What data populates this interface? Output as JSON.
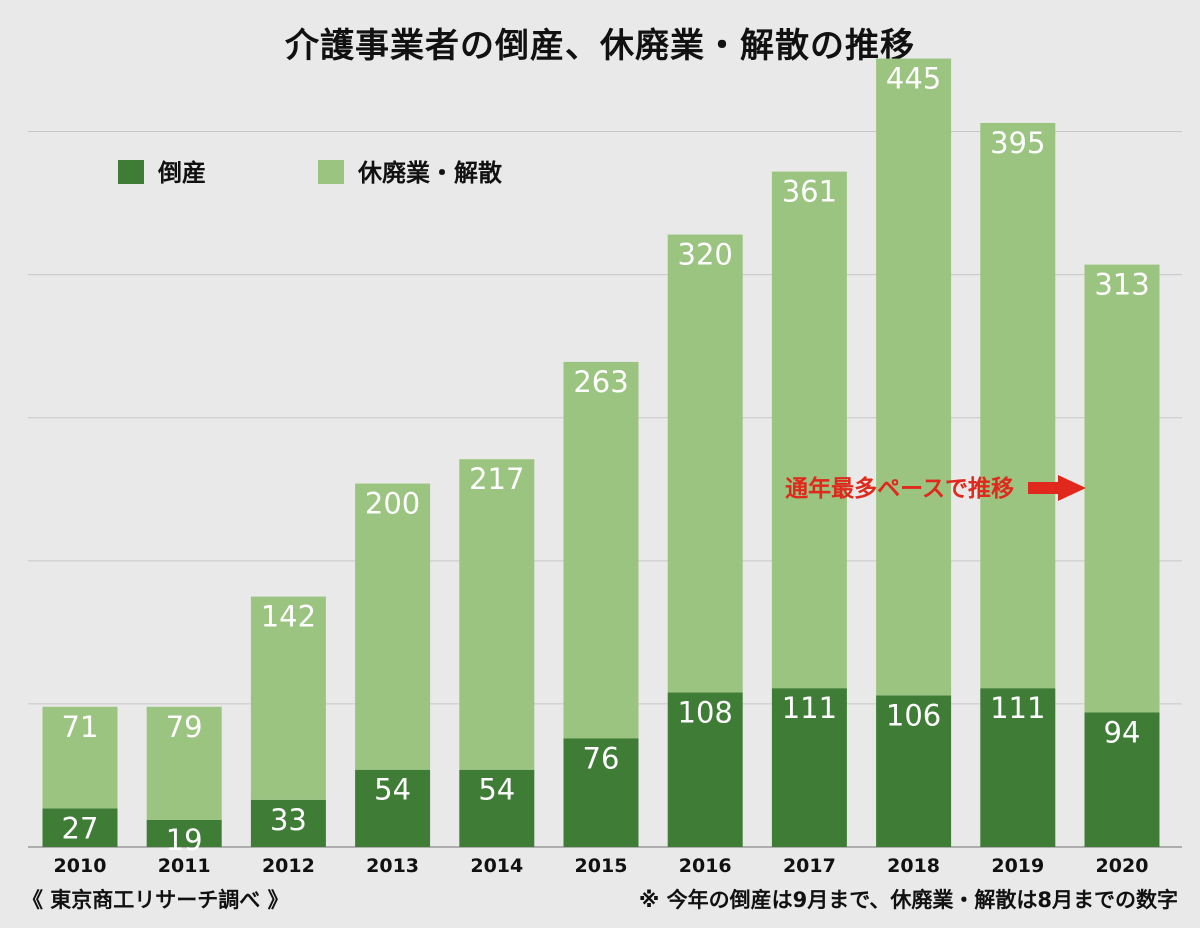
{
  "title": "介護事業者の倒産、休廃業・解散の推移",
  "footer": {
    "source": "《 東京商工リサーチ調べ 》",
    "note": "※ 今年の倒産は9月まで、休廃業・解散は8月までの数字"
  },
  "chart_data": {
    "type": "bar",
    "stacked": true,
    "categories": [
      "2010",
      "2011",
      "2012",
      "2013",
      "2014",
      "2015",
      "2016",
      "2017",
      "2018",
      "2019",
      "2020"
    ],
    "series": [
      {
        "name": "倒産",
        "color": "#3f7d37",
        "values": [
          27,
          19,
          33,
          54,
          54,
          76,
          108,
          111,
          106,
          111,
          94
        ]
      },
      {
        "name": "休廃業・解散",
        "color": "#9ac47f",
        "values": [
          71,
          79,
          142,
          200,
          217,
          263,
          320,
          361,
          445,
          395,
          313
        ]
      }
    ],
    "ylim": [
      0,
      550
    ],
    "grid": true,
    "legend_position": "top-left",
    "annotation": {
      "text": "通年最多ペースで推移",
      "target_category": "2020",
      "color": "#e0291c"
    }
  }
}
